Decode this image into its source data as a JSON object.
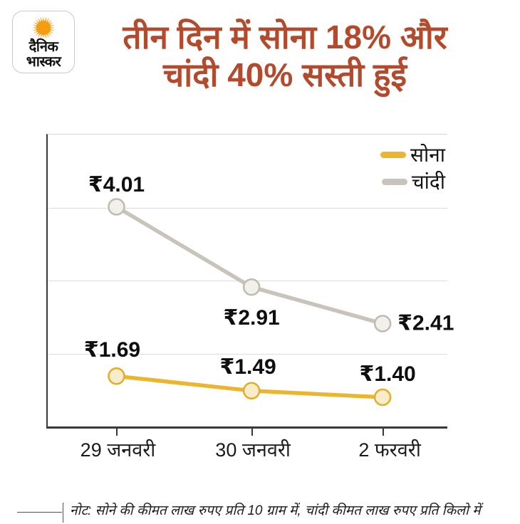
{
  "brand": {
    "name_line1": "दैनिक",
    "name_line2": "भास्कर",
    "sun_color": "#F59D0E"
  },
  "headline": {
    "line1": "तीन दिन में सोना 18% और",
    "line2": "चांदी 40% सस्ती हुई",
    "color": "#b24b2e"
  },
  "note": {
    "text": "नोट: सोने की कीमत लाख रुपए प्रति 10 ग्राम में, चांदी कीमत लाख रुपए प्रति किलो में"
  },
  "chart_data": {
    "type": "line",
    "categories": [
      "29 जनवरी",
      "30 जनवरी",
      "2 फरवरी"
    ],
    "series": [
      {
        "name": "सोना",
        "values": [
          1.69,
          1.49,
          1.4
        ],
        "labels": [
          "₹1.69",
          "₹1.49",
          "₹1.40"
        ],
        "color": "#EBB52E",
        "point_fill": "#F9ECCB",
        "point_stroke": "#E3AC29"
      },
      {
        "name": "चांदी",
        "values": [
          4.01,
          2.91,
          2.41
        ],
        "labels": [
          "₹4.01",
          "₹2.91",
          "₹2.41"
        ],
        "color": "#C8C4BB",
        "point_fill": "#F2F0EA",
        "point_stroke": "#BFBBB1"
      }
    ],
    "ylim": [
      1.0,
      5.0
    ],
    "grid": true,
    "legend_position": "top-right",
    "currency_prefix": "₹",
    "title": "तीन दिन में सोना 18% और चांदी 40% सस्ती हुई",
    "xlabel": "",
    "ylabel": ""
  }
}
